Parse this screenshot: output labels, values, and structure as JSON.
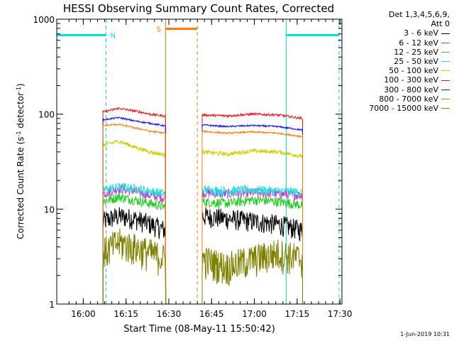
{
  "chart_data": {
    "type": "line",
    "title": "HESSI Observing Summary Count Rates, Corrected",
    "ylabel": "Corrected Count Rate (s-1 detector-1)",
    "xlabel": "Start Time (08-May-11 15:50:42)",
    "yscale": "log",
    "ylim": [
      1,
      1000
    ],
    "xlim_min_after_start": [
      0,
      100
    ],
    "x_unit": "minutes after 15:50:42",
    "x_ticks": [
      {
        "label": "16:00",
        "t": 9.3
      },
      {
        "label": "16:15",
        "t": 24.3
      },
      {
        "label": "16:30",
        "t": 39.3
      },
      {
        "label": "16:45",
        "t": 54.3
      },
      {
        "label": "17:00",
        "t": 69.3
      },
      {
        "label": "17:15",
        "t": 84.3
      },
      {
        "label": "17:30",
        "t": 99.3
      }
    ],
    "y_ticks": [
      {
        "label": "1",
        "v": 1
      },
      {
        "label": "10",
        "v": 10
      },
      {
        "label": "100",
        "v": 100
      },
      {
        "label": "1000",
        "v": 1000
      }
    ],
    "legend_header": [
      "Det 1,3,4,5,6,9,",
      "Att 0"
    ],
    "series": [
      {
        "name": "3 - 6 keV",
        "color": "#000000",
        "seg1": [
          7.5,
          8.5,
          8.0,
          7.0,
          6.0
        ],
        "seg2": [
          8.5,
          8.0,
          7.5,
          7.0,
          6.0
        ],
        "noise": 0.25
      },
      {
        "name": "6 - 12 keV",
        "color": "#cc33cc",
        "seg1": [
          14.5,
          16.5,
          15.5,
          14.0,
          13.0
        ],
        "seg2": [
          15.0,
          14.5,
          15.0,
          14.5,
          14.0
        ],
        "noise": 0.12
      },
      {
        "name": "12 - 25 keV",
        "color": "#22cc22",
        "seg1": [
          12.0,
          13.5,
          12.5,
          11.5,
          10.5
        ],
        "seg2": [
          12.0,
          11.5,
          12.5,
          12.0,
          11.0
        ],
        "noise": 0.12
      },
      {
        "name": "25 - 50 keV",
        "color": "#22dddd",
        "seg1": [
          16.0,
          17.0,
          16.5,
          15.5,
          14.5
        ],
        "seg2": [
          16.0,
          15.5,
          16.0,
          15.5,
          15.0
        ],
        "noise": 0.12
      },
      {
        "name": "50 - 100 keV",
        "color": "#cccc00",
        "seg1": [
          47.0,
          52.0,
          45.0,
          40.0,
          37.0
        ],
        "seg2": [
          40.0,
          38.0,
          41.0,
          40.0,
          36.0
        ],
        "noise": 0.05
      },
      {
        "name": "100 - 300 keV",
        "color": "#ee1111",
        "seg1": [
          105.0,
          115.0,
          108.0,
          100.0,
          95.0
        ],
        "seg2": [
          98.0,
          96.0,
          100.0,
          98.0,
          90.0
        ],
        "noise": 0.03
      },
      {
        "name": "300 - 800 keV",
        "color": "#1111ee",
        "seg1": [
          87.0,
          92.0,
          85.0,
          80.0,
          75.0
        ],
        "seg2": [
          77.0,
          74.0,
          76.0,
          74.0,
          68.0
        ],
        "noise": 0.02
      },
      {
        "name": "800 - 7000 keV",
        "color": "#ff7700",
        "seg1": [
          76.0,
          78.0,
          72.0,
          66.0,
          63.0
        ],
        "seg2": [
          66.0,
          63.0,
          65.0,
          63.0,
          58.0
        ],
        "noise": 0.02
      },
      {
        "name": "7000 - 15000 keV",
        "color": "#808000",
        "seg1": [
          3.5,
          4.5,
          4.0,
          3.5,
          3.0
        ],
        "seg2": [
          3.0,
          2.5,
          3.0,
          3.5,
          3.0
        ],
        "noise": 0.4
      }
    ],
    "data_segments_min": [
      [
        16.2,
        38.2
      ],
      [
        51.0,
        86.2
      ]
    ],
    "night_bars": [
      {
        "label": "N",
        "color": "#00dddd",
        "start": 0,
        "end": 17.3,
        "level": 680
      },
      {
        "label": "N",
        "color": "#00dddd",
        "start": 80.5,
        "end": 99.0,
        "level": 680
      }
    ],
    "saa_bar": {
      "label": "S",
      "color": "#ff7700",
      "start": 38.2,
      "end": 49.3,
      "level": 790
    },
    "orbit_markers": [
      {
        "color": "#00dddd",
        "style": "solid",
        "t": 0.0
      },
      {
        "color": "#00dddd",
        "style": "dashed",
        "t": 17.3
      },
      {
        "color": "#ff7700",
        "style": "solid",
        "t": 38.2
      },
      {
        "color": "#ff7700",
        "style": "dashed",
        "t": 49.3
      },
      {
        "color": "#00dddd",
        "style": "solid",
        "t": 80.5
      },
      {
        "color": "#00dddd",
        "style": "dashed",
        "t": 99.0
      }
    ],
    "footer_date": "1-Jun-2019 10:31"
  }
}
